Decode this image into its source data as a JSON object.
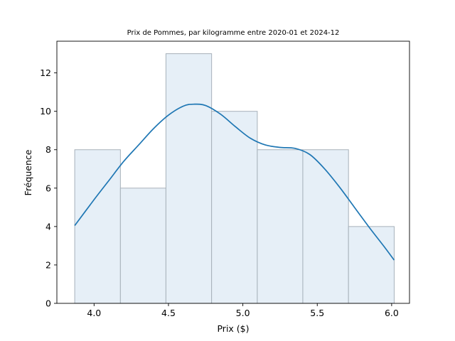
{
  "chart_data": {
    "type": "bar",
    "title": "Prix de Pommes, par kilogramme entre 2020-01 et 2024-12",
    "xlabel": "Prix ($)",
    "ylabel": "Fréquence",
    "xlim": [
      3.75,
      6.12
    ],
    "ylim": [
      0,
      13.65
    ],
    "x_ticks": [
      4.0,
      4.5,
      5.0,
      5.5,
      6.0
    ],
    "x_tick_labels": [
      "4.0",
      "4.5",
      "5.0",
      "5.5",
      "6.0"
    ],
    "y_ticks": [
      0,
      2,
      4,
      6,
      8,
      10,
      12
    ],
    "y_tick_labels": [
      "0",
      "2",
      "4",
      "6",
      "8",
      "10",
      "12"
    ],
    "grid": false,
    "bins": [
      {
        "start": 3.87,
        "end": 4.177,
        "count": 8
      },
      {
        "start": 4.177,
        "end": 4.483,
        "count": 6
      },
      {
        "start": 4.483,
        "end": 4.79,
        "count": 13
      },
      {
        "start": 4.79,
        "end": 5.097,
        "count": 10
      },
      {
        "start": 5.097,
        "end": 5.403,
        "count": 8
      },
      {
        "start": 5.403,
        "end": 5.71,
        "count": 8
      },
      {
        "start": 5.71,
        "end": 6.017,
        "count": 4
      }
    ],
    "kde": {
      "x": [
        3.87,
        4.0,
        4.1,
        4.2,
        4.3,
        4.4,
        4.5,
        4.6,
        4.67,
        4.75,
        4.85,
        4.95,
        5.05,
        5.15,
        5.25,
        5.35,
        5.45,
        5.55,
        5.65,
        5.75,
        5.85,
        5.95,
        6.017
      ],
      "y": [
        4.05,
        5.4,
        6.4,
        7.4,
        8.25,
        9.1,
        9.8,
        10.27,
        10.37,
        10.3,
        9.85,
        9.2,
        8.6,
        8.25,
        8.12,
        8.07,
        7.75,
        7.0,
        6.05,
        5.0,
        3.95,
        2.95,
        2.25
      ],
      "color": "#1f77b4"
    },
    "bar_color": "#e6eff7",
    "bar_edge_color": "#a7b1ba"
  }
}
